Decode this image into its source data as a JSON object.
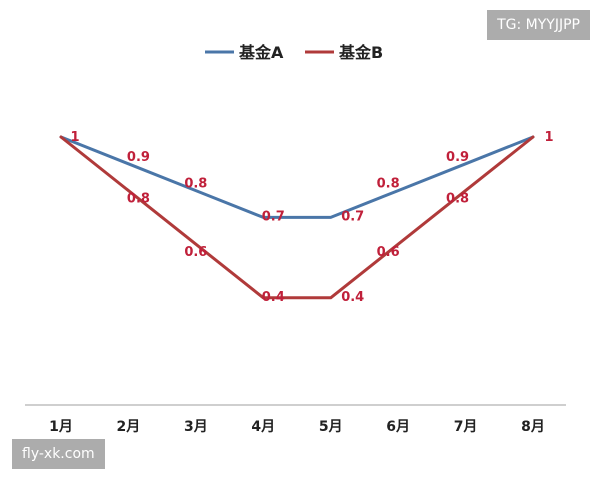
{
  "chart_data": {
    "type": "line",
    "categories": [
      "1月",
      "2月",
      "3月",
      "4月",
      "5月",
      "6月",
      "7月",
      "8月"
    ],
    "series": [
      {
        "name": "基金A",
        "color": "#4a76a8",
        "values": [
          1,
          0.9,
          0.8,
          0.7,
          0.7,
          0.8,
          0.9,
          1
        ],
        "labels": [
          "",
          "0.9",
          "0.8",
          "0.7",
          "0.7",
          "0.8",
          "0.9",
          ""
        ]
      },
      {
        "name": "基金B",
        "color": "#b03a3a",
        "values": [
          1,
          0.8,
          0.6,
          0.4,
          0.4,
          0.6,
          0.8,
          1
        ],
        "labels": [
          "1",
          "0.8",
          "0.6",
          "0.4",
          "0.4",
          "0.6",
          "0.8",
          "1"
        ]
      }
    ],
    "label_color": "#c0203a",
    "ylim": [
      0,
      1
    ],
    "legend_position": "top-center",
    "grid": false
  },
  "watermarks": {
    "top_right": "TG: MYYJJPP",
    "bottom_left": "fly-xk.com"
  }
}
